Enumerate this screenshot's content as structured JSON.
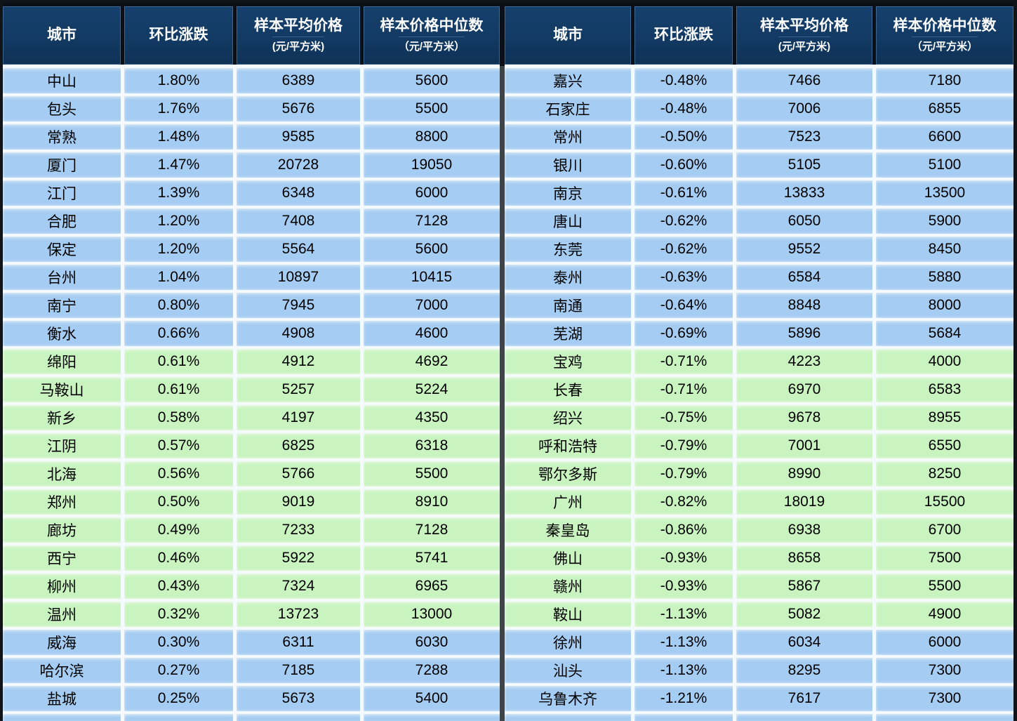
{
  "colors": {
    "frame_border": "#101419",
    "divider": "#3f4449",
    "header_bg": "#123a63",
    "header_gap": "#0b1018",
    "header_text": "#ffffff",
    "body_gap": "#f5faff",
    "row_blue": "#a5ccf2",
    "row_green": "#c9f4c0",
    "text": "#000000"
  },
  "chart_data": [
    {
      "type": "table",
      "panel": "left",
      "columns": [
        {
          "label": "城市",
          "sublabel": ""
        },
        {
          "label": "环比涨跌",
          "sublabel": ""
        },
        {
          "label": "样本平均价格",
          "sublabel": "(元/平方米)"
        },
        {
          "label": "样本价格中位数",
          "sublabel": "（元/平方米）"
        }
      ],
      "rows": [
        {
          "city": "中山",
          "change": "1.80%",
          "avg": 6389,
          "median": 5600,
          "tone": "blue"
        },
        {
          "city": "包头",
          "change": "1.76%",
          "avg": 5676,
          "median": 5500,
          "tone": "blue"
        },
        {
          "city": "常熟",
          "change": "1.48%",
          "avg": 9585,
          "median": 8800,
          "tone": "blue"
        },
        {
          "city": "厦门",
          "change": "1.47%",
          "avg": 20728,
          "median": 19050,
          "tone": "blue"
        },
        {
          "city": "江门",
          "change": "1.39%",
          "avg": 6348,
          "median": 6000,
          "tone": "blue"
        },
        {
          "city": "合肥",
          "change": "1.20%",
          "avg": 7408,
          "median": 7128,
          "tone": "blue"
        },
        {
          "city": "保定",
          "change": "1.20%",
          "avg": 5564,
          "median": 5600,
          "tone": "blue"
        },
        {
          "city": "台州",
          "change": "1.04%",
          "avg": 10897,
          "median": 10415,
          "tone": "blue"
        },
        {
          "city": "南宁",
          "change": "0.80%",
          "avg": 7945,
          "median": 7000,
          "tone": "blue"
        },
        {
          "city": "衡水",
          "change": "0.66%",
          "avg": 4908,
          "median": 4600,
          "tone": "blue"
        },
        {
          "city": "绵阳",
          "change": "0.61%",
          "avg": 4912,
          "median": 4692,
          "tone": "green"
        },
        {
          "city": "马鞍山",
          "change": "0.61%",
          "avg": 5257,
          "median": 5224,
          "tone": "green"
        },
        {
          "city": "新乡",
          "change": "0.58%",
          "avg": 4197,
          "median": 4350,
          "tone": "green"
        },
        {
          "city": "江阴",
          "change": "0.57%",
          "avg": 6825,
          "median": 6318,
          "tone": "green"
        },
        {
          "city": "北海",
          "change": "0.56%",
          "avg": 5766,
          "median": 5500,
          "tone": "green"
        },
        {
          "city": "郑州",
          "change": "0.50%",
          "avg": 9019,
          "median": 8910,
          "tone": "green"
        },
        {
          "city": "廊坊",
          "change": "0.49%",
          "avg": 7233,
          "median": 7128,
          "tone": "green"
        },
        {
          "city": "西宁",
          "change": "0.46%",
          "avg": 5922,
          "median": 5741,
          "tone": "green"
        },
        {
          "city": "柳州",
          "change": "0.43%",
          "avg": 7324,
          "median": 6965,
          "tone": "green"
        },
        {
          "city": "温州",
          "change": "0.32%",
          "avg": 13723,
          "median": 13000,
          "tone": "green"
        },
        {
          "city": "威海",
          "change": "0.30%",
          "avg": 6311,
          "median": 6030,
          "tone": "blue"
        },
        {
          "city": "哈尔滨",
          "change": "0.27%",
          "avg": 7185,
          "median": 7288,
          "tone": "blue"
        },
        {
          "city": "盐城",
          "change": "0.25%",
          "avg": 5673,
          "median": 5400,
          "tone": "blue"
        }
      ],
      "partial_row": {
        "tone": "blue"
      }
    },
    {
      "type": "table",
      "panel": "right",
      "columns": [
        {
          "label": "城市",
          "sublabel": ""
        },
        {
          "label": "环比涨跌",
          "sublabel": ""
        },
        {
          "label": "样本平均价格",
          "sublabel": "(元/平方米)"
        },
        {
          "label": "样本价格中位数",
          "sublabel": "（元/平方米）"
        }
      ],
      "rows": [
        {
          "city": "嘉兴",
          "change": "-0.48%",
          "avg": 7466,
          "median": 7180,
          "tone": "blue"
        },
        {
          "city": "石家庄",
          "change": "-0.48%",
          "avg": 7006,
          "median": 6855,
          "tone": "blue"
        },
        {
          "city": "常州",
          "change": "-0.50%",
          "avg": 7523,
          "median": 6600,
          "tone": "blue"
        },
        {
          "city": "银川",
          "change": "-0.60%",
          "avg": 5105,
          "median": 5100,
          "tone": "blue"
        },
        {
          "city": "南京",
          "change": "-0.61%",
          "avg": 13833,
          "median": 13500,
          "tone": "blue"
        },
        {
          "city": "唐山",
          "change": "-0.62%",
          "avg": 6050,
          "median": 5900,
          "tone": "blue"
        },
        {
          "city": "东莞",
          "change": "-0.62%",
          "avg": 9552,
          "median": 8450,
          "tone": "blue"
        },
        {
          "city": "泰州",
          "change": "-0.63%",
          "avg": 6584,
          "median": 5880,
          "tone": "blue"
        },
        {
          "city": "南通",
          "change": "-0.64%",
          "avg": 8848,
          "median": 8000,
          "tone": "blue"
        },
        {
          "city": "芜湖",
          "change": "-0.69%",
          "avg": 5896,
          "median": 5684,
          "tone": "blue"
        },
        {
          "city": "宝鸡",
          "change": "-0.71%",
          "avg": 4223,
          "median": 4000,
          "tone": "green"
        },
        {
          "city": "长春",
          "change": "-0.71%",
          "avg": 6970,
          "median": 6583,
          "tone": "green"
        },
        {
          "city": "绍兴",
          "change": "-0.75%",
          "avg": 9678,
          "median": 8955,
          "tone": "green"
        },
        {
          "city": "呼和浩特",
          "change": "-0.79%",
          "avg": 7001,
          "median": 6550,
          "tone": "green"
        },
        {
          "city": "鄂尔多斯",
          "change": "-0.79%",
          "avg": 8990,
          "median": 8250,
          "tone": "green"
        },
        {
          "city": "广州",
          "change": "-0.82%",
          "avg": 18019,
          "median": 15500,
          "tone": "green"
        },
        {
          "city": "秦皇岛",
          "change": "-0.86%",
          "avg": 6938,
          "median": 6700,
          "tone": "green"
        },
        {
          "city": "佛山",
          "change": "-0.93%",
          "avg": 8658,
          "median": 7500,
          "tone": "green"
        },
        {
          "city": "赣州",
          "change": "-0.93%",
          "avg": 5867,
          "median": 5500,
          "tone": "green"
        },
        {
          "city": "鞍山",
          "change": "-1.13%",
          "avg": 5082,
          "median": 4900,
          "tone": "green"
        },
        {
          "city": "徐州",
          "change": "-1.13%",
          "avg": 6034,
          "median": 6000,
          "tone": "blue"
        },
        {
          "city": "汕头",
          "change": "-1.13%",
          "avg": 8295,
          "median": 7300,
          "tone": "blue"
        },
        {
          "city": "乌鲁木齐",
          "change": "-1.21%",
          "avg": 7617,
          "median": 7300,
          "tone": "blue"
        }
      ],
      "partial_row": {
        "tone": "blue"
      }
    }
  ]
}
